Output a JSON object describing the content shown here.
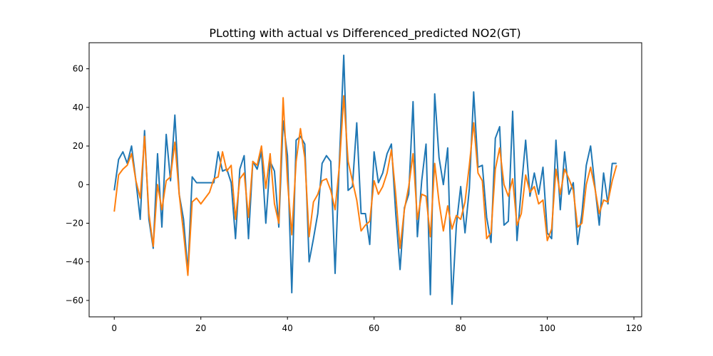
{
  "chart_data": {
    "type": "line",
    "title": "PLotting with actual vs Differenced_predicted NO2(GT)",
    "xlabel": "",
    "ylabel": "",
    "xlim": [
      -5.8,
      121.8
    ],
    "ylim": [
      -68.5,
      73.5
    ],
    "xticks": [
      0,
      20,
      40,
      60,
      80,
      100,
      120
    ],
    "yticks": [
      -60,
      -40,
      -20,
      0,
      20,
      40,
      60
    ],
    "grid": false,
    "legend": "none",
    "x": [
      0,
      1,
      2,
      3,
      4,
      5,
      6,
      7,
      8,
      9,
      10,
      11,
      12,
      13,
      14,
      15,
      16,
      17,
      18,
      19,
      20,
      21,
      22,
      23,
      24,
      25,
      26,
      27,
      28,
      29,
      30,
      31,
      32,
      33,
      34,
      35,
      36,
      37,
      38,
      39,
      40,
      41,
      42,
      43,
      44,
      45,
      46,
      47,
      48,
      49,
      50,
      51,
      52,
      53,
      54,
      55,
      56,
      57,
      58,
      59,
      60,
      61,
      62,
      63,
      64,
      65,
      66,
      67,
      68,
      69,
      70,
      71,
      72,
      73,
      74,
      75,
      76,
      77,
      78,
      79,
      80,
      81,
      82,
      83,
      84,
      85,
      86,
      87,
      88,
      89,
      90,
      91,
      92,
      93,
      94,
      95,
      96,
      97,
      98,
      99,
      100,
      101,
      102,
      103,
      104,
      105,
      106,
      107,
      108,
      109,
      110,
      111,
      112,
      113,
      114,
      115,
      116
    ],
    "series": [
      {
        "color": "#1f77b4",
        "values": [
          -3,
          13,
          17,
          11,
          20,
          2,
          -18,
          28,
          -18,
          -33,
          16,
          -22,
          26,
          2,
          36,
          -5,
          -18,
          -45,
          4,
          1,
          1,
          1,
          1,
          1,
          17,
          7,
          8,
          1,
          -28,
          8,
          15,
          -28,
          12,
          8,
          17,
          -20,
          12,
          7,
          -22,
          33,
          15,
          -56,
          23,
          25,
          21,
          -40,
          -28,
          -15,
          11,
          15,
          12,
          -46,
          13,
          67,
          -3,
          -1,
          32,
          -15,
          -15,
          -31,
          17,
          1,
          6,
          16,
          21,
          -15,
          -44,
          -12,
          -5,
          43,
          -27,
          2,
          21,
          -57,
          47,
          14,
          0,
          19,
          -62,
          -21,
          -1,
          -25,
          -2,
          48,
          9,
          10,
          -17,
          -30,
          24,
          30,
          -21,
          -19,
          38,
          -29,
          -2,
          23,
          -6,
          6,
          -5,
          9,
          -25,
          -28,
          23,
          -13,
          17,
          -5,
          1,
          -31,
          -15,
          10,
          20,
          -1,
          -21,
          6,
          -10,
          11,
          11
        ]
      },
      {
        "color": "#ff7f0e",
        "values": [
          -14,
          5,
          8,
          10,
          16,
          2,
          -7,
          25,
          -15,
          -32,
          0,
          -13,
          2,
          4,
          22,
          -5,
          -25,
          -47,
          -9,
          -7,
          -10,
          -7,
          -4,
          3,
          4,
          17,
          7,
          10,
          -18,
          3,
          6,
          -17,
          12,
          10,
          20,
          -2,
          16,
          -10,
          -20,
          45,
          2,
          -26,
          12,
          29,
          14,
          -27,
          -9,
          -5,
          2,
          3,
          -3,
          -13,
          10,
          46,
          12,
          2,
          -8,
          -24,
          -21,
          -19,
          2,
          -5,
          -1,
          6,
          18,
          -5,
          -33,
          -13,
          -1,
          16,
          -18,
          -5,
          -6,
          -27,
          11,
          -9,
          -24,
          -11,
          -23,
          -16,
          -18,
          -9,
          10,
          32,
          6,
          2,
          -28,
          -25,
          8,
          19,
          0,
          -6,
          3,
          -21,
          -15,
          5,
          -4,
          -1,
          -10,
          -8,
          -29,
          -23,
          8,
          -5,
          8,
          3,
          -3,
          -22,
          -20,
          0,
          9,
          -2,
          -15,
          -8,
          -9,
          2,
          10
        ]
      }
    ]
  }
}
